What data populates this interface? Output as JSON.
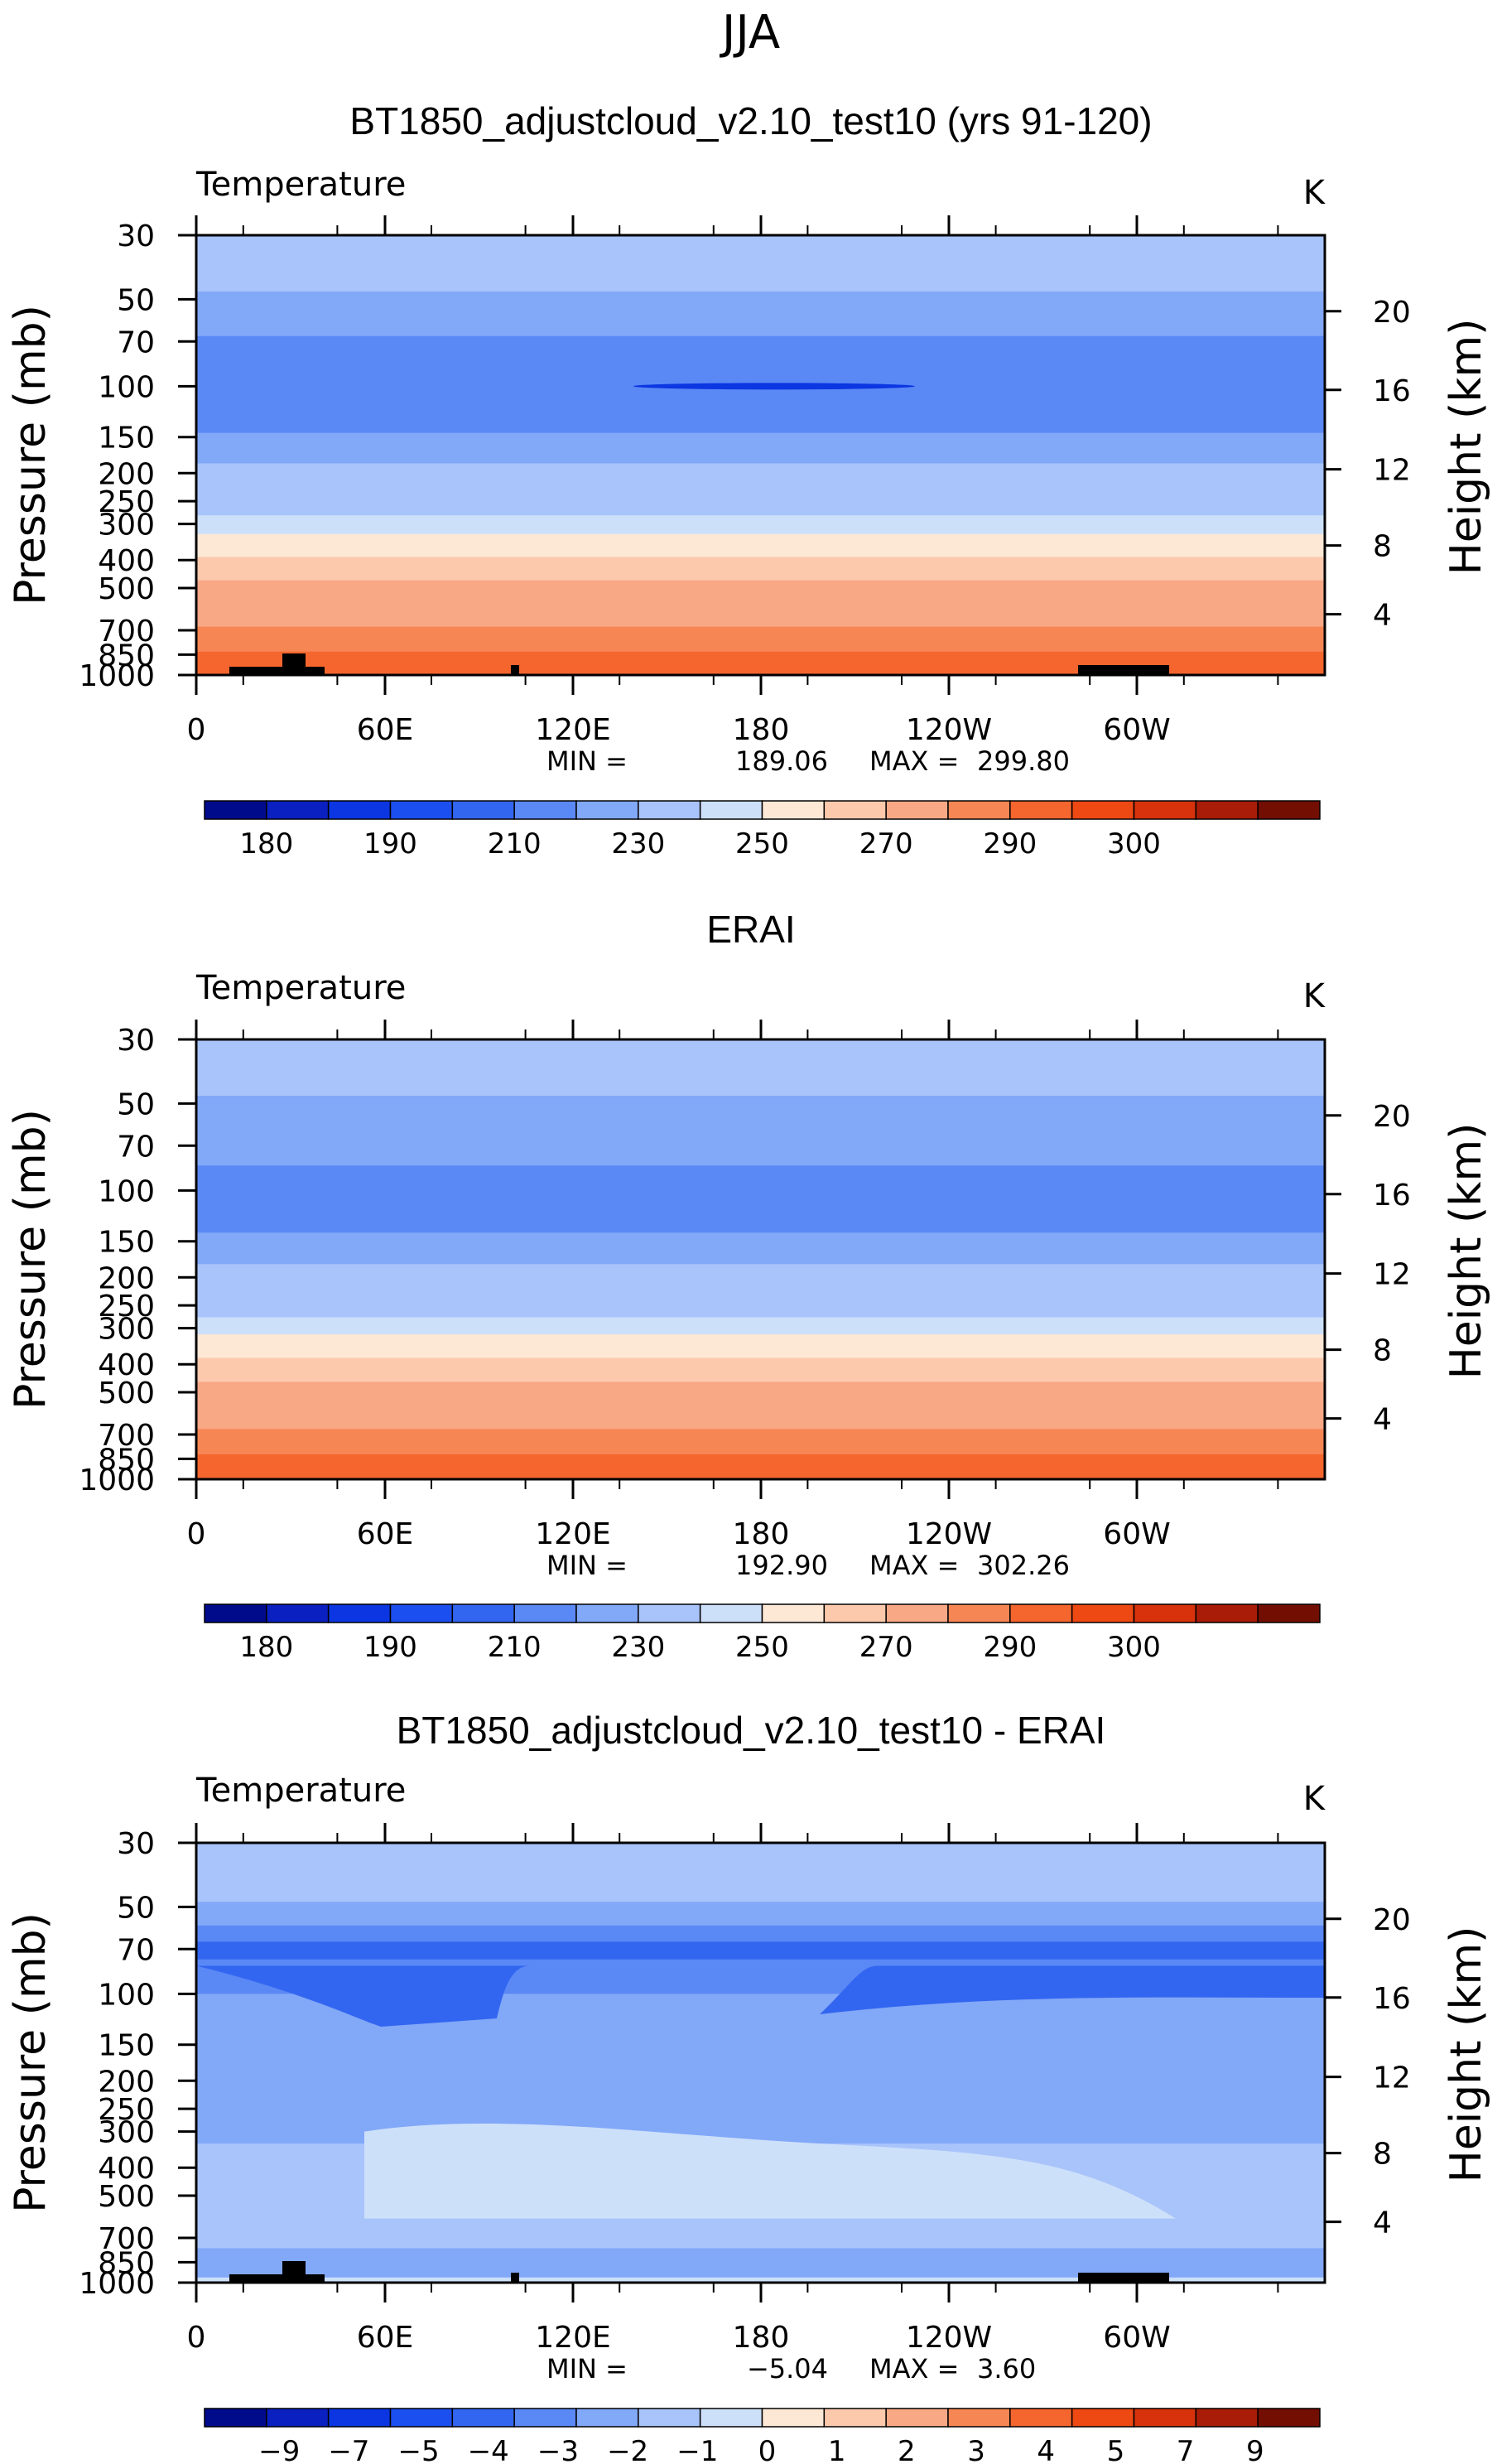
{
  "page": {
    "season": "JJA"
  },
  "palette": {
    "temp": [
      "#000b8c",
      "#0a20c0",
      "#0b36e2",
      "#1c4ff0",
      "#3366f0",
      "#5a88f5",
      "#82a8f8",
      "#a8c4fa",
      "#cde0fa",
      "#fde8d6",
      "#fcc9ad",
      "#f9a886",
      "#f78655",
      "#f5652e",
      "#ee4813",
      "#d7320b",
      "#a81c08",
      "#730e02"
    ],
    "diff": [
      "#000b8c",
      "#0a20c0",
      "#0b36e2",
      "#1c4ff0",
      "#3366f0",
      "#5a88f5",
      "#82a8f8",
      "#a8c4fa",
      "#cde0fa",
      "#fde8d6",
      "#fcc9ad",
      "#f9a886",
      "#f78655",
      "#f5652e",
      "#ee4813",
      "#d7320b",
      "#a81c08",
      "#730e02"
    ]
  },
  "chart_data": [
    {
      "type": "heatmap",
      "title": "BT1850_adjustcloud_v2.10_test10 (yrs 91-120)",
      "variable": "Temperature",
      "units": "K",
      "ylabel": "Pressure (mb)",
      "ylabel_right": "Height (km)",
      "pressure_ticks": [
        "30",
        "50",
        "70",
        "100",
        "150",
        "200",
        "250",
        "300",
        "400",
        "500",
        "700",
        "850",
        "1000"
      ],
      "height_ticks": [
        "20",
        "16",
        "12",
        "8",
        "4"
      ],
      "x_ticks": [
        "0",
        "60E",
        "120E",
        "180",
        "120W",
        "60W"
      ],
      "min_label": "MIN =",
      "min_value": "189.06",
      "max_label": "MAX =",
      "max_value": "299.80",
      "colorbar_labels": [
        "180",
        "190",
        "210",
        "230",
        "250",
        "270",
        "290",
        "300"
      ],
      "levels": [
        {
          "p_top": 30,
          "p_bot": 47,
          "value": 220
        },
        {
          "p_top": 47,
          "p_bot": 67,
          "value": 215
        },
        {
          "p_top": 67,
          "p_bot": 145,
          "value": 205
        },
        {
          "p_top": 145,
          "p_bot": 185,
          "value": 215
        },
        {
          "p_top": 185,
          "p_bot": 235,
          "value": 220
        },
        {
          "p_top": 235,
          "p_bot": 280,
          "value": 225
        },
        {
          "p_top": 280,
          "p_bot": 325,
          "value": 235
        },
        {
          "p_top": 325,
          "p_bot": 390,
          "value": 245
        },
        {
          "p_top": 390,
          "p_bot": 470,
          "value": 255
        },
        {
          "p_top": 470,
          "p_bot": 560,
          "value": 262
        },
        {
          "p_top": 560,
          "p_bot": 680,
          "value": 268
        },
        {
          "p_top": 680,
          "p_bot": 830,
          "value": 275
        },
        {
          "p_top": 830,
          "p_bot": 940,
          "value": 282
        },
        {
          "p_top": 940,
          "p_bot": 1000,
          "value": 289
        }
      ]
    },
    {
      "type": "heatmap",
      "title": "ERAI",
      "variable": "Temperature",
      "units": "K",
      "ylabel": "Pressure (mb)",
      "ylabel_right": "Height (km)",
      "pressure_ticks": [
        "30",
        "50",
        "70",
        "100",
        "150",
        "200",
        "250",
        "300",
        "400",
        "500",
        "700",
        "850",
        "1000"
      ],
      "height_ticks": [
        "20",
        "16",
        "12",
        "8",
        "4"
      ],
      "x_ticks": [
        "0",
        "60E",
        "120E",
        "180",
        "120W",
        "60W"
      ],
      "min_label": "MIN =",
      "min_value": "192.90",
      "max_label": "MAX =",
      "max_value": "302.26",
      "colorbar_labels": [
        "180",
        "190",
        "210",
        "230",
        "250",
        "270",
        "290",
        "300"
      ],
      "levels": [
        {
          "p_top": 30,
          "p_bot": 47,
          "value": 220
        },
        {
          "p_top": 47,
          "p_bot": 82,
          "value": 215
        },
        {
          "p_top": 82,
          "p_bot": 140,
          "value": 205
        },
        {
          "p_top": 140,
          "p_bot": 180,
          "value": 215
        },
        {
          "p_top": 180,
          "p_bot": 230,
          "value": 220
        },
        {
          "p_top": 230,
          "p_bot": 275,
          "value": 225
        },
        {
          "p_top": 275,
          "p_bot": 315,
          "value": 235
        },
        {
          "p_top": 315,
          "p_bot": 380,
          "value": 245
        },
        {
          "p_top": 380,
          "p_bot": 460,
          "value": 255
        },
        {
          "p_top": 460,
          "p_bot": 550,
          "value": 262
        },
        {
          "p_top": 550,
          "p_bot": 670,
          "value": 268
        },
        {
          "p_top": 670,
          "p_bot": 820,
          "value": 275
        },
        {
          "p_top": 820,
          "p_bot": 930,
          "value": 282
        },
        {
          "p_top": 930,
          "p_bot": 1000,
          "value": 289
        }
      ]
    },
    {
      "type": "heatmap",
      "title": "BT1850_adjustcloud_v2.10_test10 - ERAI",
      "variable": "Temperature",
      "units": "K",
      "ylabel": "Pressure (mb)",
      "ylabel_right": "Height (km)",
      "pressure_ticks": [
        "30",
        "50",
        "70",
        "100",
        "150",
        "200",
        "250",
        "300",
        "400",
        "500",
        "700",
        "850",
        "1000"
      ],
      "height_ticks": [
        "20",
        "16",
        "12",
        "8",
        "4"
      ],
      "x_ticks": [
        "0",
        "60E",
        "120E",
        "180",
        "120W",
        "60W"
      ],
      "min_label": "MIN =",
      "min_value": "−5.04",
      "max_label": "MAX =",
      "max_value": "3.60",
      "colorbar_labels": [
        "−9",
        "−7",
        "−5",
        "−4",
        "−3",
        "−2",
        "−1",
        "0",
        "1",
        "2",
        "3",
        "4",
        "5",
        "7",
        "9"
      ],
      "levels": [
        {
          "p_top": 30,
          "p_bot": 48,
          "value": -0.5
        },
        {
          "p_top": 48,
          "p_bot": 58,
          "value": -1.5
        },
        {
          "p_top": 58,
          "p_bot": 66,
          "value": -2.5
        },
        {
          "p_top": 66,
          "p_bot": 76,
          "value": -3.5
        },
        {
          "p_top": 76,
          "p_bot": 100,
          "value": -2.5
        },
        {
          "p_top": 100,
          "p_bot": 240,
          "value": -1.5
        },
        {
          "p_top": 240,
          "p_bot": 330,
          "value": -1.5
        },
        {
          "p_top": 330,
          "p_bot": 760,
          "value": -0.5
        },
        {
          "p_top": 760,
          "p_bot": 960,
          "value": -1.5
        },
        {
          "p_top": 960,
          "p_bot": 1000,
          "value": 0.5
        }
      ]
    }
  ]
}
